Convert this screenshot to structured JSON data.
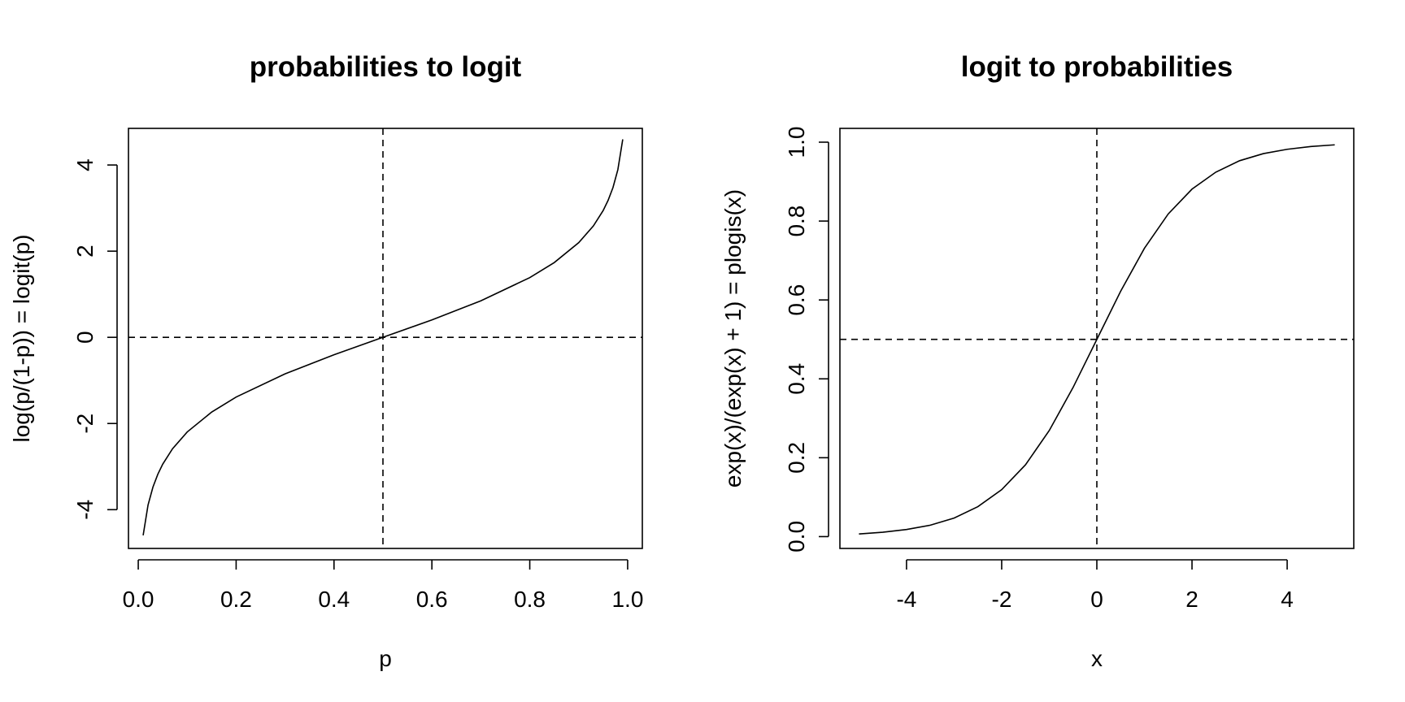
{
  "chart_data": [
    {
      "type": "line",
      "title": "probabilities to logit",
      "xlabel": "p",
      "ylabel": "log(p/(1-p)) = logit(p)",
      "xlim": [
        -0.02,
        1.03
      ],
      "ylim": [
        -4.9,
        4.85
      ],
      "xticks": [
        0.0,
        0.2,
        0.4,
        0.6,
        0.8,
        1.0
      ],
      "xtick_labels": [
        "0.0",
        "0.2",
        "0.4",
        "0.6",
        "0.8",
        "1.0"
      ],
      "yticks": [
        -4,
        -2,
        0,
        2,
        4
      ],
      "ytick_labels": [
        "-4",
        "-2",
        "0",
        "2",
        "4"
      ],
      "ytick_labels_rotated": true,
      "reference_lines": {
        "vertical_x": 0.5,
        "horizontal_y": 0,
        "style": "dashed"
      },
      "series": [
        {
          "x": [
            0.01,
            0.02,
            0.03,
            0.04,
            0.05,
            0.07,
            0.1,
            0.15,
            0.2,
            0.3,
            0.4,
            0.5,
            0.6,
            0.7,
            0.8,
            0.85,
            0.9,
            0.93,
            0.95,
            0.96,
            0.97,
            0.98,
            0.99
          ],
          "y": [
            -4.595,
            -3.892,
            -3.476,
            -3.178,
            -2.944,
            -2.587,
            -2.197,
            -1.735,
            -1.386,
            -0.847,
            -0.405,
            0.0,
            0.405,
            0.847,
            1.386,
            1.735,
            2.197,
            2.587,
            2.944,
            3.178,
            3.476,
            3.892,
            4.595
          ]
        }
      ],
      "grid": false,
      "legend": "none"
    },
    {
      "type": "line",
      "title": "logit to probabilities",
      "xlabel": "x",
      "ylabel": "exp(x)/(exp(x) + 1) = plogis(x)",
      "xlim": [
        -5.4,
        5.4
      ],
      "ylim": [
        -0.03,
        1.035
      ],
      "xticks": [
        -4,
        -2,
        0,
        2,
        4
      ],
      "xtick_labels": [
        "-4",
        "-2",
        "0",
        "2",
        "4"
      ],
      "yticks": [
        0.0,
        0.2,
        0.4,
        0.6,
        0.8,
        1.0
      ],
      "ytick_labels": [
        "0.0",
        "0.2",
        "0.4",
        "0.6",
        "0.8",
        "1.0"
      ],
      "ytick_labels_rotated": true,
      "reference_lines": {
        "vertical_x": 0,
        "horizontal_y": 0.5,
        "style": "dashed"
      },
      "series": [
        {
          "x": [
            -5,
            -4.5,
            -4,
            -3.5,
            -3,
            -2.5,
            -2,
            -1.5,
            -1,
            -0.5,
            0,
            0.5,
            1,
            1.5,
            2,
            2.5,
            3,
            3.5,
            4,
            4.5,
            5
          ],
          "y": [
            0.0067,
            0.011,
            0.018,
            0.029,
            0.047,
            0.076,
            0.119,
            0.182,
            0.269,
            0.378,
            0.5,
            0.622,
            0.731,
            0.818,
            0.881,
            0.924,
            0.953,
            0.971,
            0.982,
            0.989,
            0.9933
          ]
        }
      ],
      "grid": false,
      "legend": "none"
    }
  ]
}
